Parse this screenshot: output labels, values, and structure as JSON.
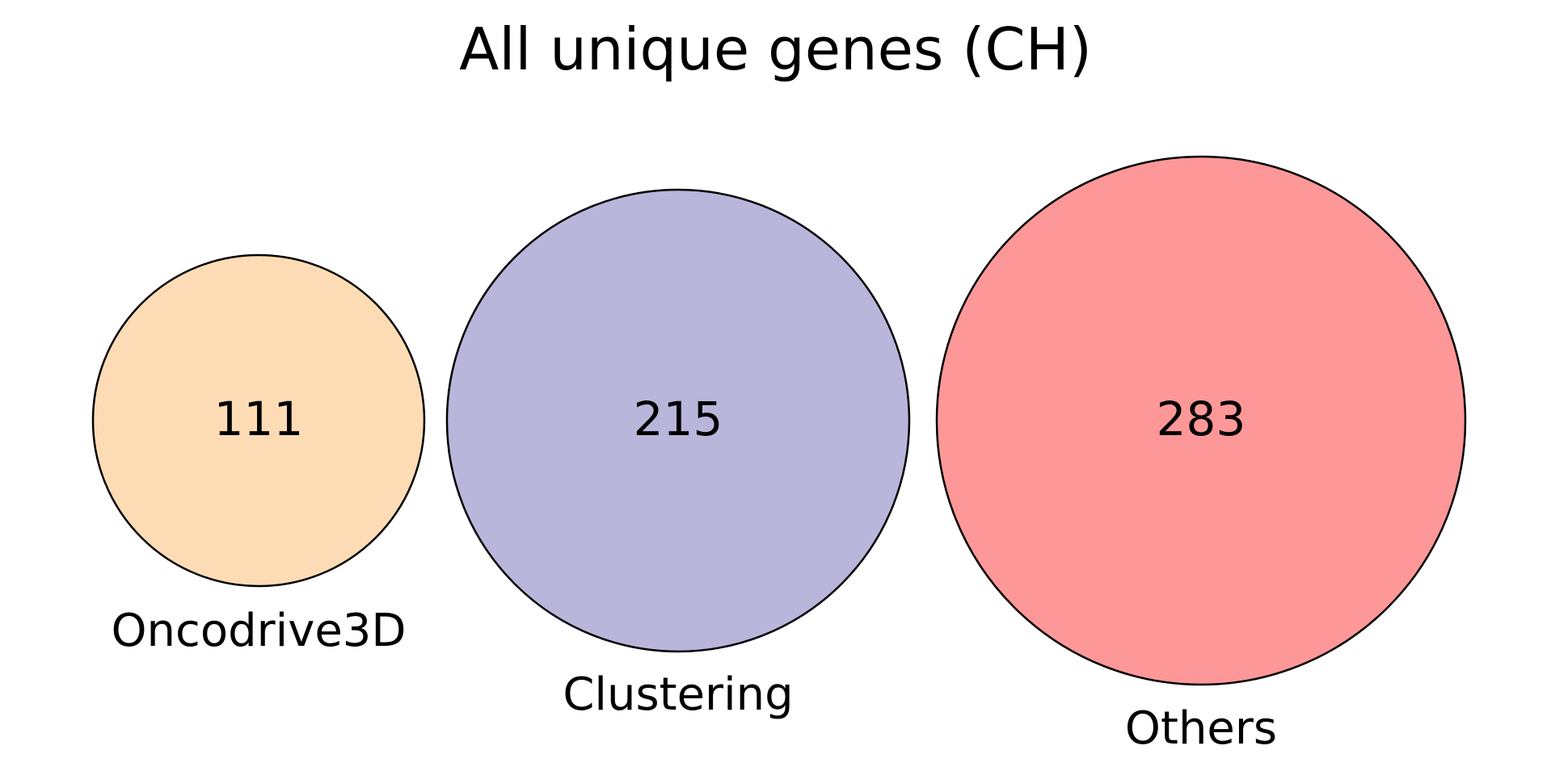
{
  "title": "All unique genes (CH)",
  "sets": [
    {
      "name": "Oncodrive3D",
      "count": "111",
      "value": 111,
      "color": "#fddcb5"
    },
    {
      "name": "Clustering",
      "count": "215",
      "value": 215,
      "color": "#bab5da"
    },
    {
      "name": "Others",
      "count": "283",
      "value": 283,
      "color": "#fe9797"
    }
  ],
  "outline_color": "#000000"
}
